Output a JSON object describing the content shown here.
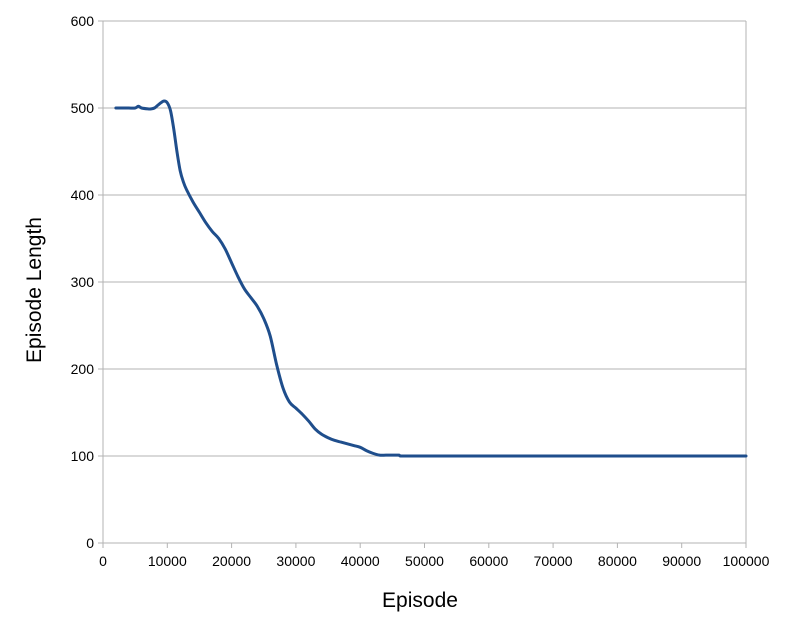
{
  "chart_data": {
    "type": "line",
    "xlabel": "Episode",
    "ylabel": "Episode Length",
    "xlim": [
      0,
      100000
    ],
    "ylim": [
      0,
      600
    ],
    "xticks": [
      0,
      10000,
      20000,
      30000,
      40000,
      50000,
      60000,
      70000,
      80000,
      90000,
      100000
    ],
    "yticks": [
      0,
      100,
      200,
      300,
      400,
      500,
      600
    ],
    "grid": "horizontal",
    "legend": "none",
    "series": [
      {
        "color": "#1f4e8c",
        "x": [
          2000,
          3000,
          4000,
          5000,
          5500,
          6000,
          7000,
          7500,
          8000,
          8500,
          9000,
          9500,
          10000,
          10500,
          11000,
          11500,
          12000,
          12500,
          13000,
          14000,
          15000,
          16000,
          17000,
          18000,
          19000,
          20000,
          21000,
          22000,
          23000,
          24000,
          25000,
          26000,
          27000,
          28000,
          29000,
          30000,
          31000,
          32000,
          33000,
          34000,
          35000,
          36000,
          37000,
          38000,
          39000,
          40000,
          41000,
          42000,
          43000,
          44000,
          45000,
          46000,
          46500,
          50000,
          60000,
          70000,
          80000,
          90000,
          100000
        ],
        "y": [
          500,
          500,
          500,
          500,
          502,
          500,
          499,
          499,
          500,
          503,
          506,
          508,
          506,
          497,
          476,
          450,
          428,
          415,
          406,
          392,
          380,
          368,
          358,
          350,
          338,
          322,
          306,
          292,
          282,
          272,
          258,
          238,
          205,
          178,
          162,
          155,
          148,
          140,
          131,
          125,
          121,
          118,
          116,
          114,
          112,
          110,
          106,
          103,
          101,
          101,
          101,
          101,
          100,
          100,
          100,
          100,
          100,
          100,
          100
        ]
      }
    ]
  }
}
